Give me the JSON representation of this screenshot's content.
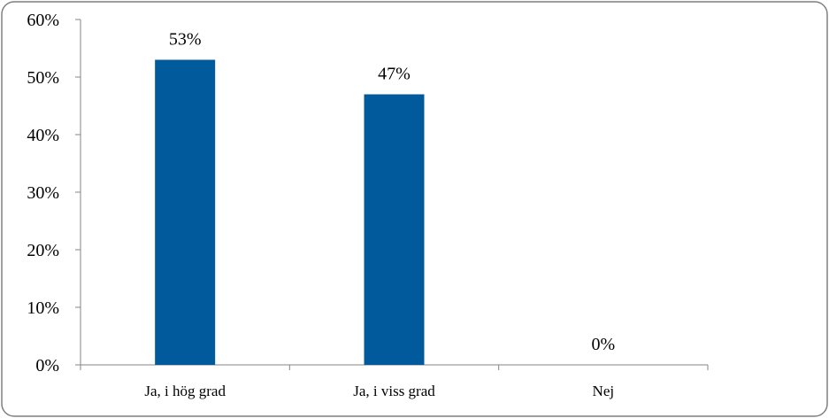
{
  "chart_data": {
    "type": "bar",
    "categories": [
      "Ja, i hög grad",
      "Ja, i viss grad",
      "Nej"
    ],
    "values": [
      53,
      47,
      0
    ],
    "data_labels": [
      "53%",
      "47%",
      "0%"
    ],
    "title": "",
    "xlabel": "",
    "ylabel": "",
    "ylim": [
      0,
      60
    ],
    "yticks": [
      0,
      10,
      20,
      30,
      40,
      50,
      60
    ],
    "ytick_labels": [
      "0%",
      "10%",
      "20%",
      "30%",
      "40%",
      "50%",
      "60%"
    ],
    "grid": false,
    "legend": "none",
    "bar_color": "#005a9c",
    "axis_color": "#868686",
    "border_color": "#7f7f7f"
  }
}
